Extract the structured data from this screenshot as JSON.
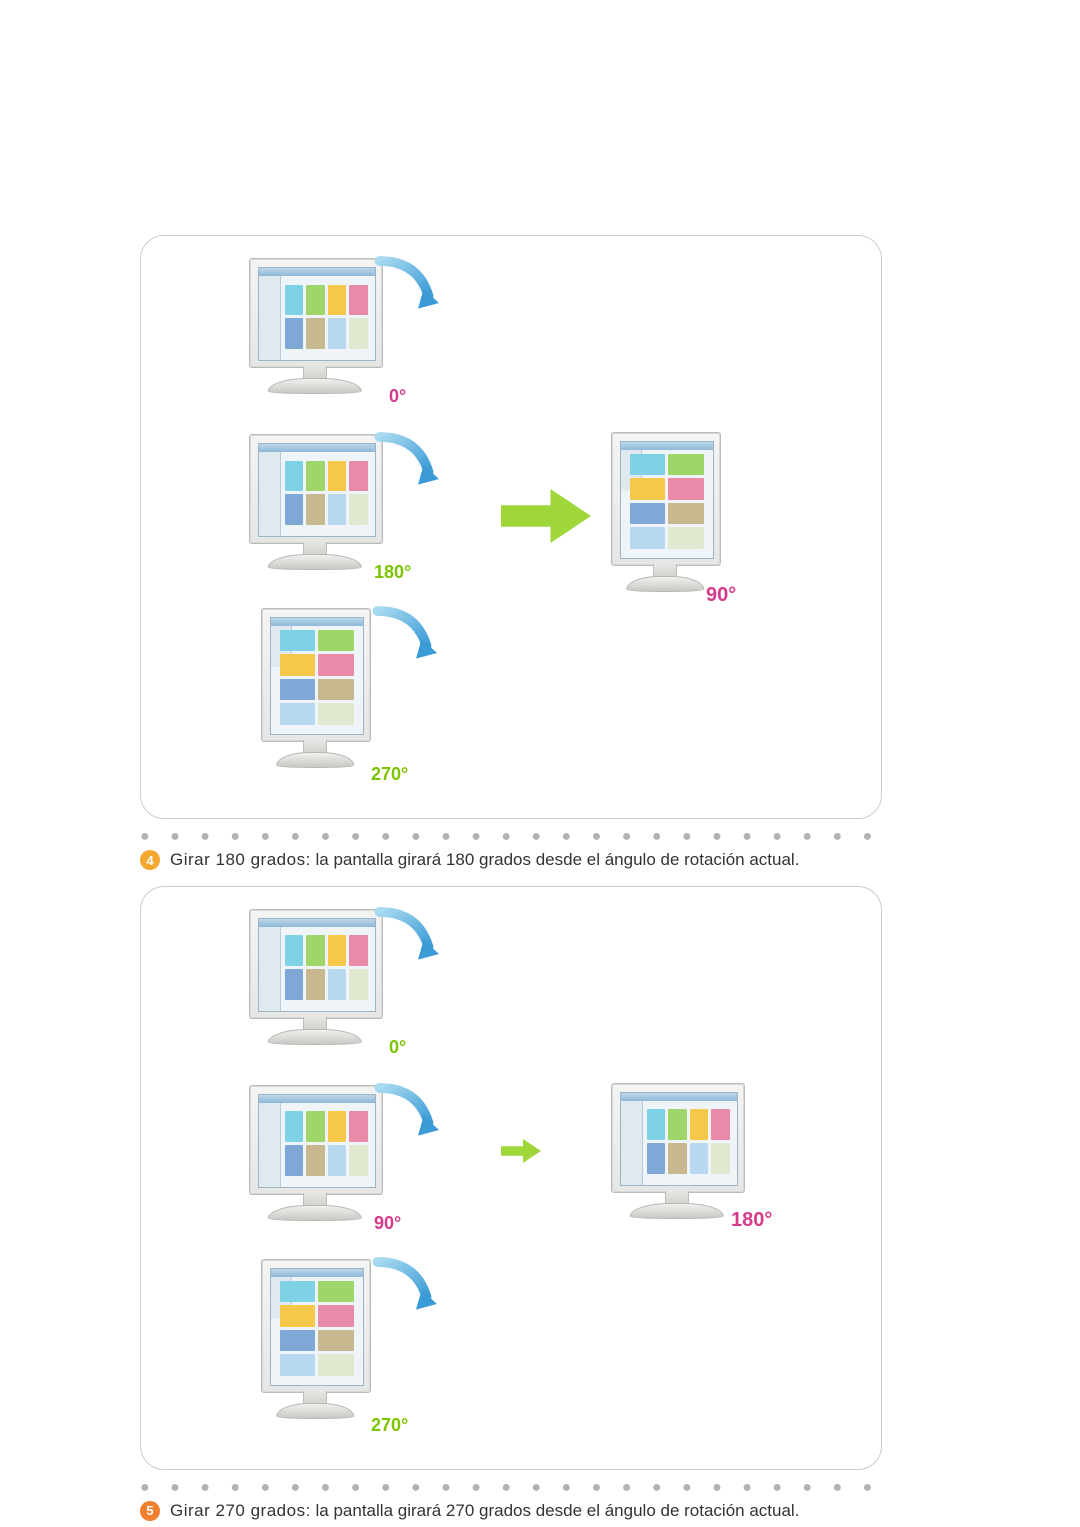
{
  "colors": {
    "box_border": "#cccccc",
    "dot": "#b2b2b2",
    "angle_red": "#d63a8a",
    "angle_green": "#7cc400",
    "arrow_blue_light": "#a7d9f0",
    "arrow_blue_dark": "#3a9bd6",
    "big_arrow_green": "#9fd63a",
    "badge4": "#f4a830",
    "badge5": "#f08030",
    "text": "#333333"
  },
  "diagram1": {
    "angles": {
      "top": {
        "text": "0°",
        "color": "#d63a8a"
      },
      "mid_l": {
        "text": "180°",
        "color": "#7cc400"
      },
      "mid_r": {
        "text": "90°",
        "color": "#d63a8a"
      },
      "bot": {
        "text": "270°",
        "color": "#7cc400"
      }
    },
    "arrow_size": "large"
  },
  "bullet4": {
    "number": "4",
    "badge_color": "#f4a830",
    "lead": "Girar 180 grados:",
    "rest": " la pantalla girará 180 grados desde el ángulo de rotación actual."
  },
  "diagram2": {
    "angles": {
      "top": {
        "text": "0°",
        "color": "#7cc400"
      },
      "mid_l": {
        "text": "90°",
        "color": "#d63a8a"
      },
      "mid_r": {
        "text": "180°",
        "color": "#d63a8a"
      },
      "bot": {
        "text": "270°",
        "color": "#7cc400"
      }
    },
    "arrow_size": "small"
  },
  "bullet5": {
    "number": "5",
    "badge_color": "#f08030",
    "lead": "Girar 270 grados:",
    "rest": " la pantalla girará 270 grados desde el ángulo de rotación actual."
  },
  "screen_thumbs": {
    "colors": [
      "#7fd1e6",
      "#9fd66a",
      "#f5c84a",
      "#e88aa8",
      "#7fa8d6",
      "#c8b890",
      "#b8d8f0",
      "#e0e8d0"
    ]
  }
}
